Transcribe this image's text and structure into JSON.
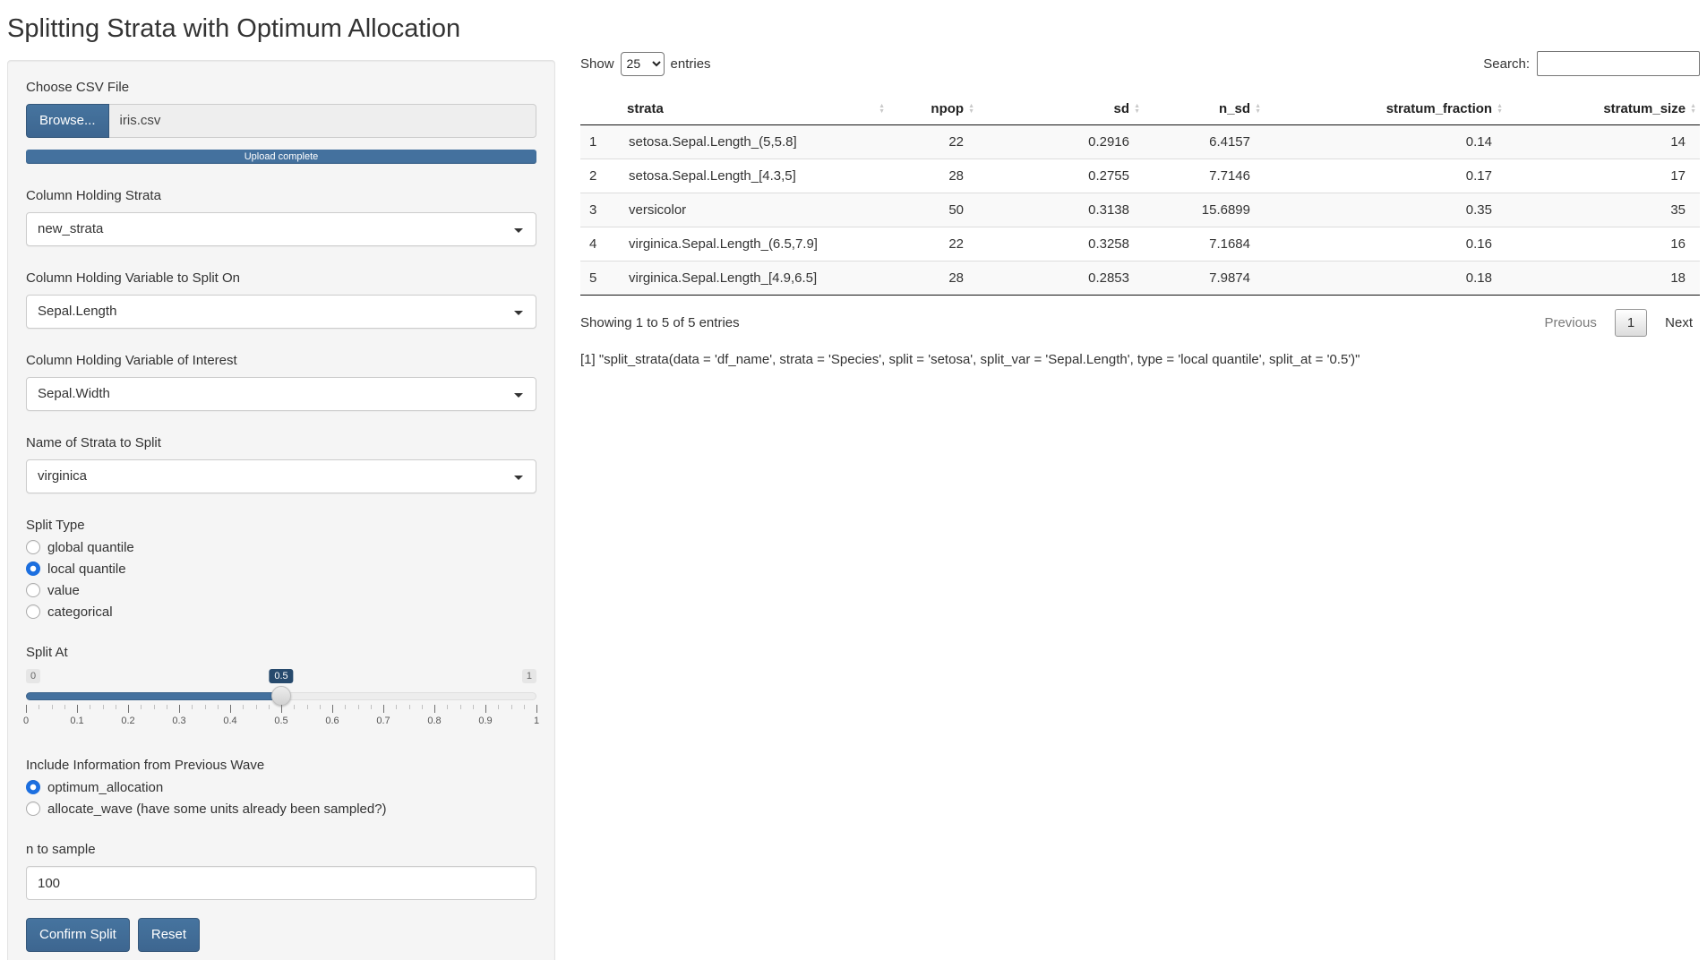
{
  "page": {
    "title": "Splitting Strata with Optimum Allocation"
  },
  "colors": {
    "primary": "#44719e",
    "slider_value_bg": "#274a6d",
    "radio_accent": "#1c6fe0",
    "table_stripe": "#f9f9f9"
  },
  "sidebar": {
    "file_input": {
      "label": "Choose CSV File",
      "browse_label": "Browse...",
      "filename": "iris.csv",
      "progress_text": "Upload complete"
    },
    "strata_select": {
      "label": "Column Holding Strata",
      "value": "new_strata"
    },
    "split_var_select": {
      "label": "Column Holding Variable to Split On",
      "value": "Sepal.Length"
    },
    "interest_var_select": {
      "label": "Column Holding Variable of Interest",
      "value": "Sepal.Width"
    },
    "strata_to_split_select": {
      "label": "Name of Strata to Split",
      "value": "virginica"
    },
    "split_type": {
      "label": "Split Type",
      "options": [
        {
          "label": "global quantile",
          "selected": false
        },
        {
          "label": "local quantile",
          "selected": true
        },
        {
          "label": "value",
          "selected": false
        },
        {
          "label": "categorical",
          "selected": false
        }
      ]
    },
    "slider": {
      "label": "Split At",
      "min_label": "0",
      "max_label": "1",
      "value_label": "0.5",
      "value": 0.5,
      "ticks": [
        "0",
        "0.1",
        "0.2",
        "0.3",
        "0.4",
        "0.5",
        "0.6",
        "0.7",
        "0.8",
        "0.9",
        "1"
      ]
    },
    "previous_wave": {
      "label": "Include Information from Previous Wave",
      "options": [
        {
          "label": "optimum_allocation",
          "selected": true
        },
        {
          "label": "allocate_wave (have some units already been sampled?)",
          "selected": false
        }
      ]
    },
    "n_to_sample": {
      "label": "n to sample",
      "value": "100"
    },
    "buttons": {
      "confirm": "Confirm Split",
      "reset": "Reset"
    }
  },
  "main": {
    "length_control": {
      "prefix": "Show",
      "value": "25",
      "suffix": "entries"
    },
    "search": {
      "label": "Search:",
      "value": ""
    },
    "table": {
      "columns": [
        "",
        "strata",
        "npop",
        "sd",
        "n_sd",
        "stratum_fraction",
        "stratum_size"
      ],
      "rows": [
        [
          "1",
          "setosa.Sepal.Length_(5,5.8]",
          "22",
          "0.2916",
          "6.4157",
          "0.14",
          "14"
        ],
        [
          "2",
          "setosa.Sepal.Length_[4.3,5]",
          "28",
          "0.2755",
          "7.7146",
          "0.17",
          "17"
        ],
        [
          "3",
          "versicolor",
          "50",
          "0.3138",
          "15.6899",
          "0.35",
          "35"
        ],
        [
          "4",
          "virginica.Sepal.Length_(6.5,7.9]",
          "22",
          "0.3258",
          "7.1684",
          "0.16",
          "16"
        ],
        [
          "5",
          "virginica.Sepal.Length_[4.9,6.5]",
          "28",
          "0.2853",
          "7.9874",
          "0.18",
          "18"
        ]
      ]
    },
    "info": "Showing 1 to 5 of 5 entries",
    "pagination": {
      "previous": "Previous",
      "page": "1",
      "next": "Next"
    },
    "code_output": "[1] \"split_strata(data = 'df_name', strata = 'Species', split = 'setosa', split_var = 'Sepal.Length', type = 'local quantile', split_at = '0.5')\""
  }
}
